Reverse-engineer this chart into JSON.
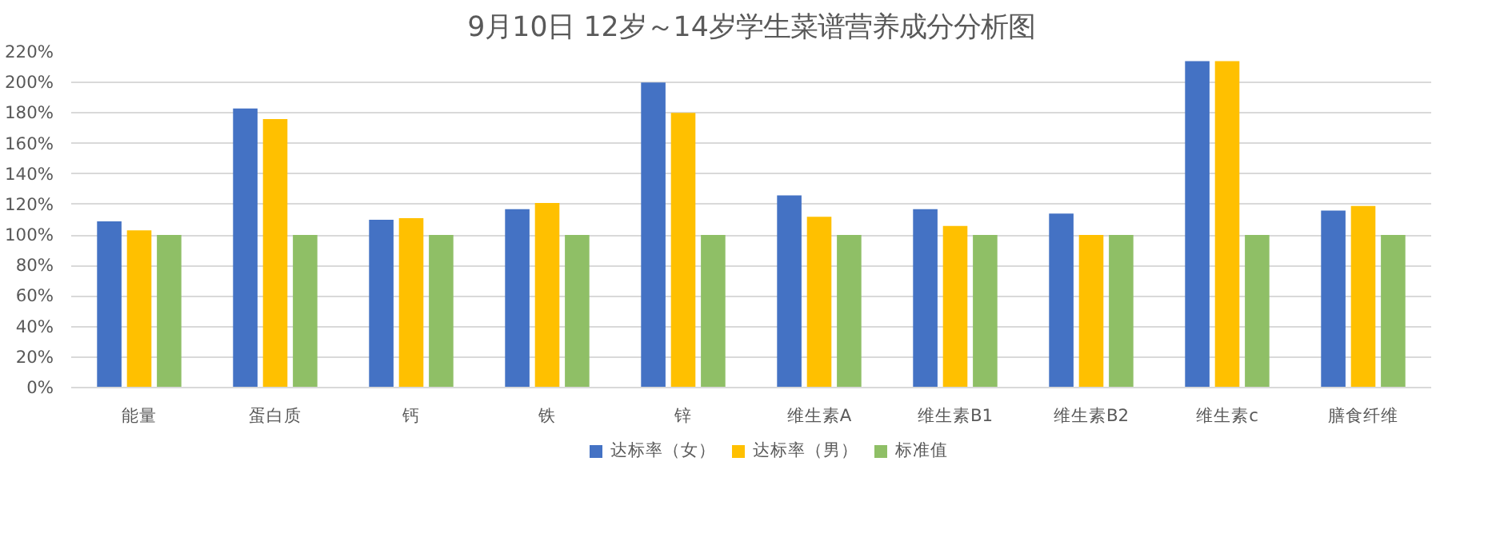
{
  "chart_data": {
    "type": "bar",
    "title": "9月10日 12岁～14岁学生菜谱营养成分分析图",
    "categories": [
      "能量",
      "蛋白质",
      "钙",
      "铁",
      "锌",
      "维生素A",
      "维生素B1",
      "维生素B2",
      "维生素c",
      "膳食纤维"
    ],
    "series": [
      {
        "name": "达标率（女）",
        "color": "#4472c4",
        "values": [
          109,
          183,
          110,
          117,
          200,
          126,
          117,
          114,
          214,
          116
        ]
      },
      {
        "name": "达标率（男）",
        "color": "#ffc000",
        "values": [
          103,
          176,
          111,
          121,
          180,
          112,
          106,
          100,
          214,
          119
        ]
      },
      {
        "name": "标准值",
        "color": "#8fbf66",
        "values": [
          100,
          100,
          100,
          100,
          100,
          100,
          100,
          100,
          100,
          100
        ]
      }
    ],
    "ylim": [
      0,
      220
    ],
    "yticks": [
      {
        "value": 0,
        "label": "0%"
      },
      {
        "value": 20,
        "label": "20%"
      },
      {
        "value": 40,
        "label": "40%"
      },
      {
        "value": 60,
        "label": "60%"
      },
      {
        "value": 80,
        "label": "80%"
      },
      {
        "value": 100,
        "label": "100%"
      },
      {
        "value": 120,
        "label": "120%"
      },
      {
        "value": 140,
        "label": "140%"
      },
      {
        "value": 160,
        "label": "160%"
      },
      {
        "value": 180,
        "label": "180%"
      },
      {
        "value": 200,
        "label": "200%"
      },
      {
        "value": 220,
        "label": "220%"
      }
    ],
    "grid": "y",
    "legend": "bottom"
  }
}
